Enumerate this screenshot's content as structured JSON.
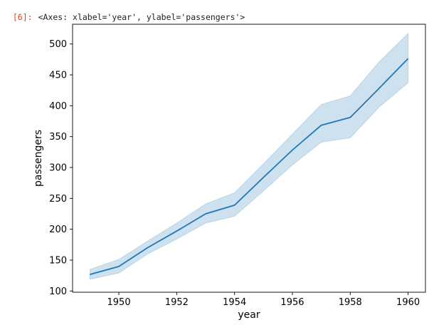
{
  "cell": {
    "prompt": "[6]:",
    "output_repr": "<Axes: xlabel='year', ylabel='passengers'>"
  },
  "chart_data": {
    "type": "line",
    "title": "",
    "xlabel": "year",
    "ylabel": "passengers",
    "xlim": [
      1948.4,
      1960.6
    ],
    "ylim": [
      98,
      532
    ],
    "xticks": [
      1950,
      1952,
      1954,
      1956,
      1958,
      1960
    ],
    "yticks": [
      100,
      150,
      200,
      250,
      300,
      350,
      400,
      450,
      500
    ],
    "grid": false,
    "legend": "none",
    "series": [
      {
        "x": [
          1949,
          1950,
          1951,
          1952,
          1953,
          1954,
          1955,
          1956,
          1957,
          1958,
          1959,
          1960
        ],
        "y": [
          126.7,
          139.7,
          170.2,
          197.0,
          225.0,
          238.9,
          284.0,
          328.3,
          368.4,
          381.0,
          428.3,
          476.2
        ],
        "ci_lower": [
          119,
          129,
          160,
          184,
          210,
          221,
          262,
          304,
          341,
          348,
          398,
          437
        ],
        "ci_upper": [
          135,
          151,
          181,
          210,
          241,
          259,
          306,
          354,
          402,
          416,
          471,
          517
        ]
      }
    ],
    "colors": {
      "line": "#1f77b4",
      "band": "#1f77b4",
      "axis": "#000000"
    }
  }
}
